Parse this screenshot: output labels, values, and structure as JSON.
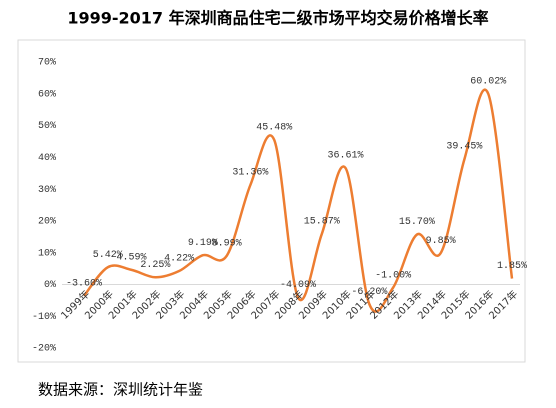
{
  "chart_data": {
    "type": "line",
    "title": "1999-2017 年深圳商品住宅二级市场平均交易价格增长率",
    "source": "数据来源：深圳统计年鉴",
    "categories": [
      "1999年",
      "2000年",
      "2001年",
      "2002年",
      "2003年",
      "2004年",
      "2005年",
      "2006年",
      "2007年",
      "2008年",
      "2009年",
      "2010年",
      "2011年",
      "2012年",
      "2013年",
      "2014年",
      "2015年",
      "2016年",
      "2017年"
    ],
    "values": [
      -3.6,
      5.42,
      4.59,
      2.25,
      4.22,
      9.19,
      8.99,
      31.36,
      45.48,
      -4.09,
      15.87,
      36.61,
      -6.2,
      -1.0,
      15.7,
      9.85,
      39.45,
      60.02,
      1.85
    ],
    "value_labels": [
      "-3.60%",
      "5.42%",
      "4.59%",
      "2.25%",
      "4.22%",
      "9.19%",
      "8.99%",
      "31.36%",
      "45.48%",
      "-4.09%",
      "15.87%",
      "36.61%",
      "-6.20%",
      "-1.00%",
      "15.70%",
      "9.85%",
      "39.45%",
      "60.02%",
      "1.85%"
    ],
    "color": "#ED7D31",
    "ylim": [
      -20,
      70
    ],
    "yticks": [
      {
        "value": -20,
        "label": "-20%"
      },
      {
        "value": -10,
        "label": "-10%"
      },
      {
        "value": 0,
        "label": "0%"
      },
      {
        "value": 10,
        "label": "10%"
      },
      {
        "value": 20,
        "label": "20%"
      },
      {
        "value": 30,
        "label": "30%"
      },
      {
        "value": 40,
        "label": "40%"
      },
      {
        "value": 50,
        "label": "50%"
      },
      {
        "value": 60,
        "label": "60%"
      },
      {
        "value": 70,
        "label": "70%"
      }
    ],
    "grid": false
  }
}
